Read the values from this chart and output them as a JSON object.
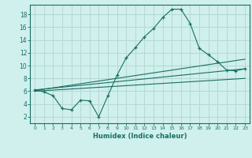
{
  "xlabel": "Humidex (Indice chaleur)",
  "bg_color": "#cff0ec",
  "grid_color": "#b5d9d4",
  "line_color": "#1a6e64",
  "xlim": [
    -0.5,
    23.5
  ],
  "ylim": [
    1,
    19.5
  ],
  "xticks": [
    0,
    1,
    2,
    3,
    4,
    5,
    6,
    7,
    8,
    9,
    10,
    11,
    12,
    13,
    14,
    15,
    16,
    17,
    18,
    19,
    20,
    21,
    22,
    23
  ],
  "yticks": [
    2,
    4,
    6,
    8,
    10,
    12,
    14,
    16,
    18
  ],
  "series1_x": [
    0,
    1,
    2,
    3,
    4,
    5,
    6,
    7,
    8,
    9,
    10,
    11,
    12,
    13,
    14,
    15,
    16,
    17,
    18,
    19,
    20,
    21,
    22,
    23
  ],
  "series1_y": [
    6.2,
    5.9,
    5.3,
    3.3,
    3.1,
    4.6,
    4.5,
    2.0,
    5.3,
    8.5,
    11.2,
    12.8,
    14.5,
    15.8,
    17.5,
    18.8,
    18.8,
    16.6,
    12.7,
    11.7,
    10.6,
    9.3,
    9.2,
    9.5
  ],
  "series2_x": [
    0,
    23
  ],
  "series2_y": [
    6.2,
    9.5
  ],
  "series3_x": [
    0,
    23
  ],
  "series3_y": [
    6.1,
    11.0
  ],
  "series4_x": [
    0,
    23
  ],
  "series4_y": [
    6.0,
    8.0
  ]
}
